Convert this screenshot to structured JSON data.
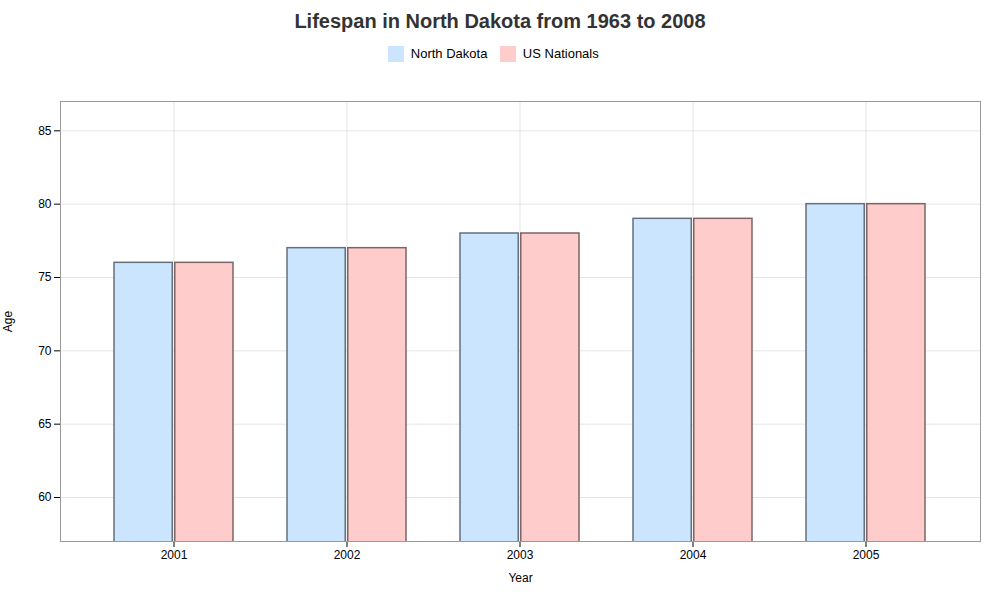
{
  "chart_data": {
    "type": "bar",
    "title": "Lifespan in North Dakota from 1963 to 2008",
    "xlabel": "Year",
    "ylabel": "Age",
    "categories": [
      "2001",
      "2002",
      "2003",
      "2004",
      "2005"
    ],
    "series": [
      {
        "name": "North Dakota",
        "color": "#cce5ff",
        "values": [
          76,
          77,
          78,
          79,
          80
        ]
      },
      {
        "name": "US Nationals",
        "color": "#ffcccc",
        "values": [
          76,
          77,
          78,
          79,
          80
        ]
      }
    ],
    "ylim": [
      57,
      87
    ],
    "yticks": [
      60,
      65,
      70,
      75,
      80,
      85
    ],
    "grid": true,
    "legend": "top"
  }
}
